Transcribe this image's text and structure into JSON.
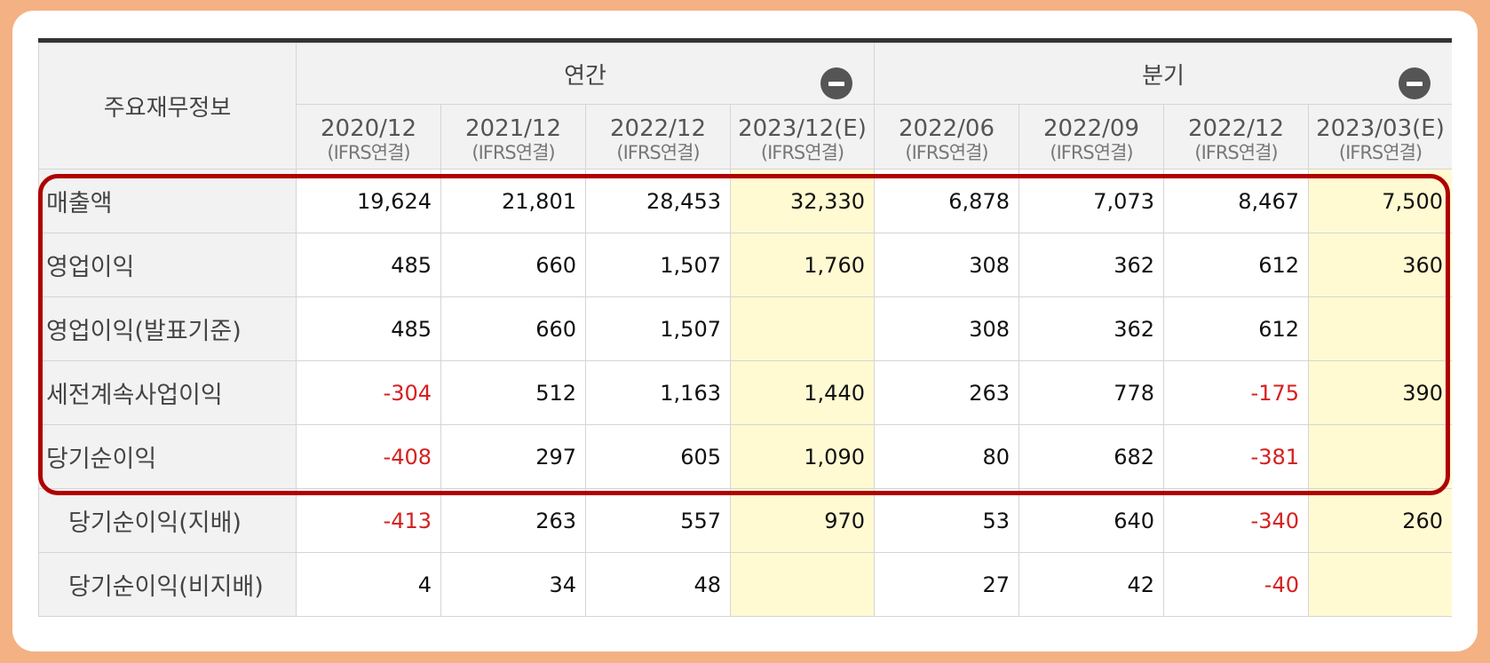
{
  "table": {
    "corner_label": "주요재무정보",
    "groups": [
      {
        "label": "연간",
        "collapse_icon": "minus-circle-icon"
      },
      {
        "label": "분기",
        "collapse_icon": "minus-circle-icon"
      }
    ],
    "periods": [
      {
        "date": "2020/12",
        "basis": "(IFRS연결)",
        "estimate": false
      },
      {
        "date": "2021/12",
        "basis": "(IFRS연결)",
        "estimate": false
      },
      {
        "date": "2022/12",
        "basis": "(IFRS연결)",
        "estimate": false
      },
      {
        "date": "2023/12(E)",
        "basis": "(IFRS연결)",
        "estimate": true
      },
      {
        "date": "2022/06",
        "basis": "(IFRS연결)",
        "estimate": false
      },
      {
        "date": "2022/09",
        "basis": "(IFRS연결)",
        "estimate": false
      },
      {
        "date": "2022/12",
        "basis": "(IFRS연결)",
        "estimate": false
      },
      {
        "date": "2023/03(E)",
        "basis": "(IFRS연결)",
        "estimate": true
      }
    ],
    "rows": [
      {
        "label": "매출액",
        "sub": false,
        "values": [
          "19,624",
          "21,801",
          "28,453",
          "32,330",
          "6,878",
          "7,073",
          "8,467",
          "7,500"
        ]
      },
      {
        "label": "영업이익",
        "sub": false,
        "values": [
          "485",
          "660",
          "1,507",
          "1,760",
          "308",
          "362",
          "612",
          "360"
        ]
      },
      {
        "label": "영업이익(발표기준)",
        "sub": false,
        "values": [
          "485",
          "660",
          "1,507",
          "",
          "308",
          "362",
          "612",
          ""
        ]
      },
      {
        "label": "세전계속사업이익",
        "sub": false,
        "values": [
          "-304",
          "512",
          "1,163",
          "1,440",
          "263",
          "778",
          "-175",
          "390"
        ]
      },
      {
        "label": "당기순이익",
        "sub": false,
        "values": [
          "-408",
          "297",
          "605",
          "1,090",
          "80",
          "682",
          "-381",
          ""
        ]
      },
      {
        "label": "당기순이익(지배)",
        "sub": true,
        "values": [
          "-413",
          "263",
          "557",
          "970",
          "53",
          "640",
          "-340",
          "260"
        ]
      },
      {
        "label": "당기순이익(비지배)",
        "sub": true,
        "values": [
          "4",
          "34",
          "48",
          "",
          "27",
          "42",
          "-40",
          ""
        ]
      }
    ]
  },
  "colors": {
    "frame": "#f4b183",
    "highlight_border": "#b00000",
    "estimate_bg": "#fffad2",
    "negative_text": "#d62020"
  }
}
